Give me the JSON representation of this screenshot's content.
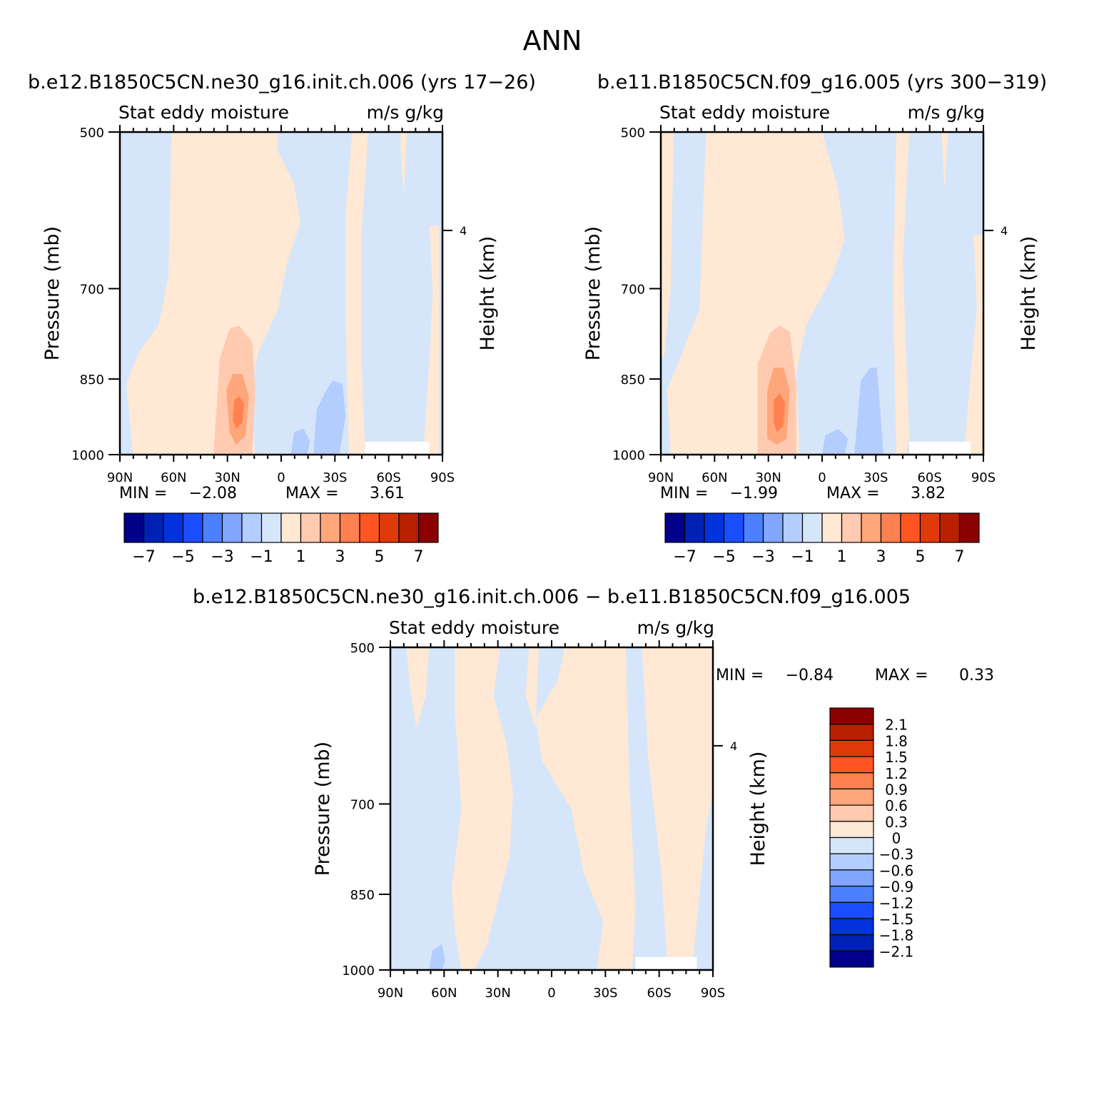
{
  "page_title": "ANN",
  "colors": {
    "neg4": "#b3cdff",
    "neg3": "#d6e6fa",
    "pos1": "#ffe8d4",
    "pos2": "#ffcab0",
    "pos3": "#ffa67a",
    "pos4": "#ff8050",
    "blank": "#ffffff"
  },
  "palette": [
    "#00008b",
    "#0022b4",
    "#0033dd",
    "#1a4dff",
    "#4d80ff",
    "#80a6ff",
    "#b3cdff",
    "#d6e6fa",
    "#ffe8d4",
    "#ffcab0",
    "#ffa67a",
    "#ff8050",
    "#ff5522",
    "#e03a0a",
    "#b82000",
    "#8b0000"
  ],
  "chart_data": [
    {
      "type": "contour",
      "title": "b.e12.B1850C5CN.ne30_g16.init.ch.006 (yrs 17-26)",
      "variable": "Stat eddy moisture",
      "units": "m/s g/kg",
      "xlabel": "",
      "ylabel": "Pressure (mb)",
      "right_label": "Height (km)",
      "x_ticks": [
        "90N",
        "60N",
        "30N",
        "0",
        "30S",
        "60S",
        "90S"
      ],
      "y_ticks": [
        "500",
        "700",
        "850",
        "1000"
      ],
      "y_scale": "log",
      "ylim": [
        500,
        1000
      ],
      "right_ticks": [
        "4"
      ],
      "min_label": "MIN =",
      "min": "-2.08",
      "max_label": "MAX =",
      "max": "3.61",
      "colorbar_labels": [
        "-7",
        "-5",
        "-3",
        "-1",
        "1",
        "3",
        "5",
        "7"
      ]
    },
    {
      "type": "contour",
      "title": "b.e11.B1850C5CN.f09_g16.005 (yrs 300-319)",
      "variable": "Stat eddy moisture",
      "units": "m/s g/kg",
      "xlabel": "",
      "ylabel": "Pressure (mb)",
      "right_label": "Height (km)",
      "x_ticks": [
        "90N",
        "60N",
        "30N",
        "0",
        "30S",
        "60S",
        "90S"
      ],
      "y_ticks": [
        "500",
        "700",
        "850",
        "1000"
      ],
      "y_scale": "log",
      "ylim": [
        500,
        1000
      ],
      "right_ticks": [
        "4"
      ],
      "min_label": "MIN =",
      "min": "-1.99",
      "max_label": "MAX =",
      "max": "3.82",
      "colorbar_labels": [
        "-7",
        "-5",
        "-3",
        "-1",
        "1",
        "3",
        "5",
        "7"
      ]
    },
    {
      "type": "contour",
      "title": "b.e12.B1850C5CN.ne30_g16.init.ch.006 - b.e11.B1850C5CN.f09_g16.005",
      "variable": "Stat eddy moisture",
      "units": "m/s g/kg",
      "xlabel": "",
      "ylabel": "Pressure (mb)",
      "right_label": "Height (km)",
      "x_ticks": [
        "90N",
        "60N",
        "30N",
        "0",
        "30S",
        "60S",
        "90S"
      ],
      "y_ticks": [
        "500",
        "700",
        "850",
        "1000"
      ],
      "y_scale": "log",
      "ylim": [
        500,
        1000
      ],
      "right_ticks": [
        "4"
      ],
      "min_label": "MIN =",
      "min": "-0.84",
      "max_label": "MAX =",
      "max": "0.33",
      "colorbar_labels": [
        "2.1",
        "1.8",
        "1.5",
        "1.2",
        "0.9",
        "0.6",
        "0.3",
        "0",
        "-0.3",
        "-0.6",
        "-0.9",
        "-1.2",
        "-1.5",
        "-1.8",
        "-2.1"
      ]
    }
  ]
}
